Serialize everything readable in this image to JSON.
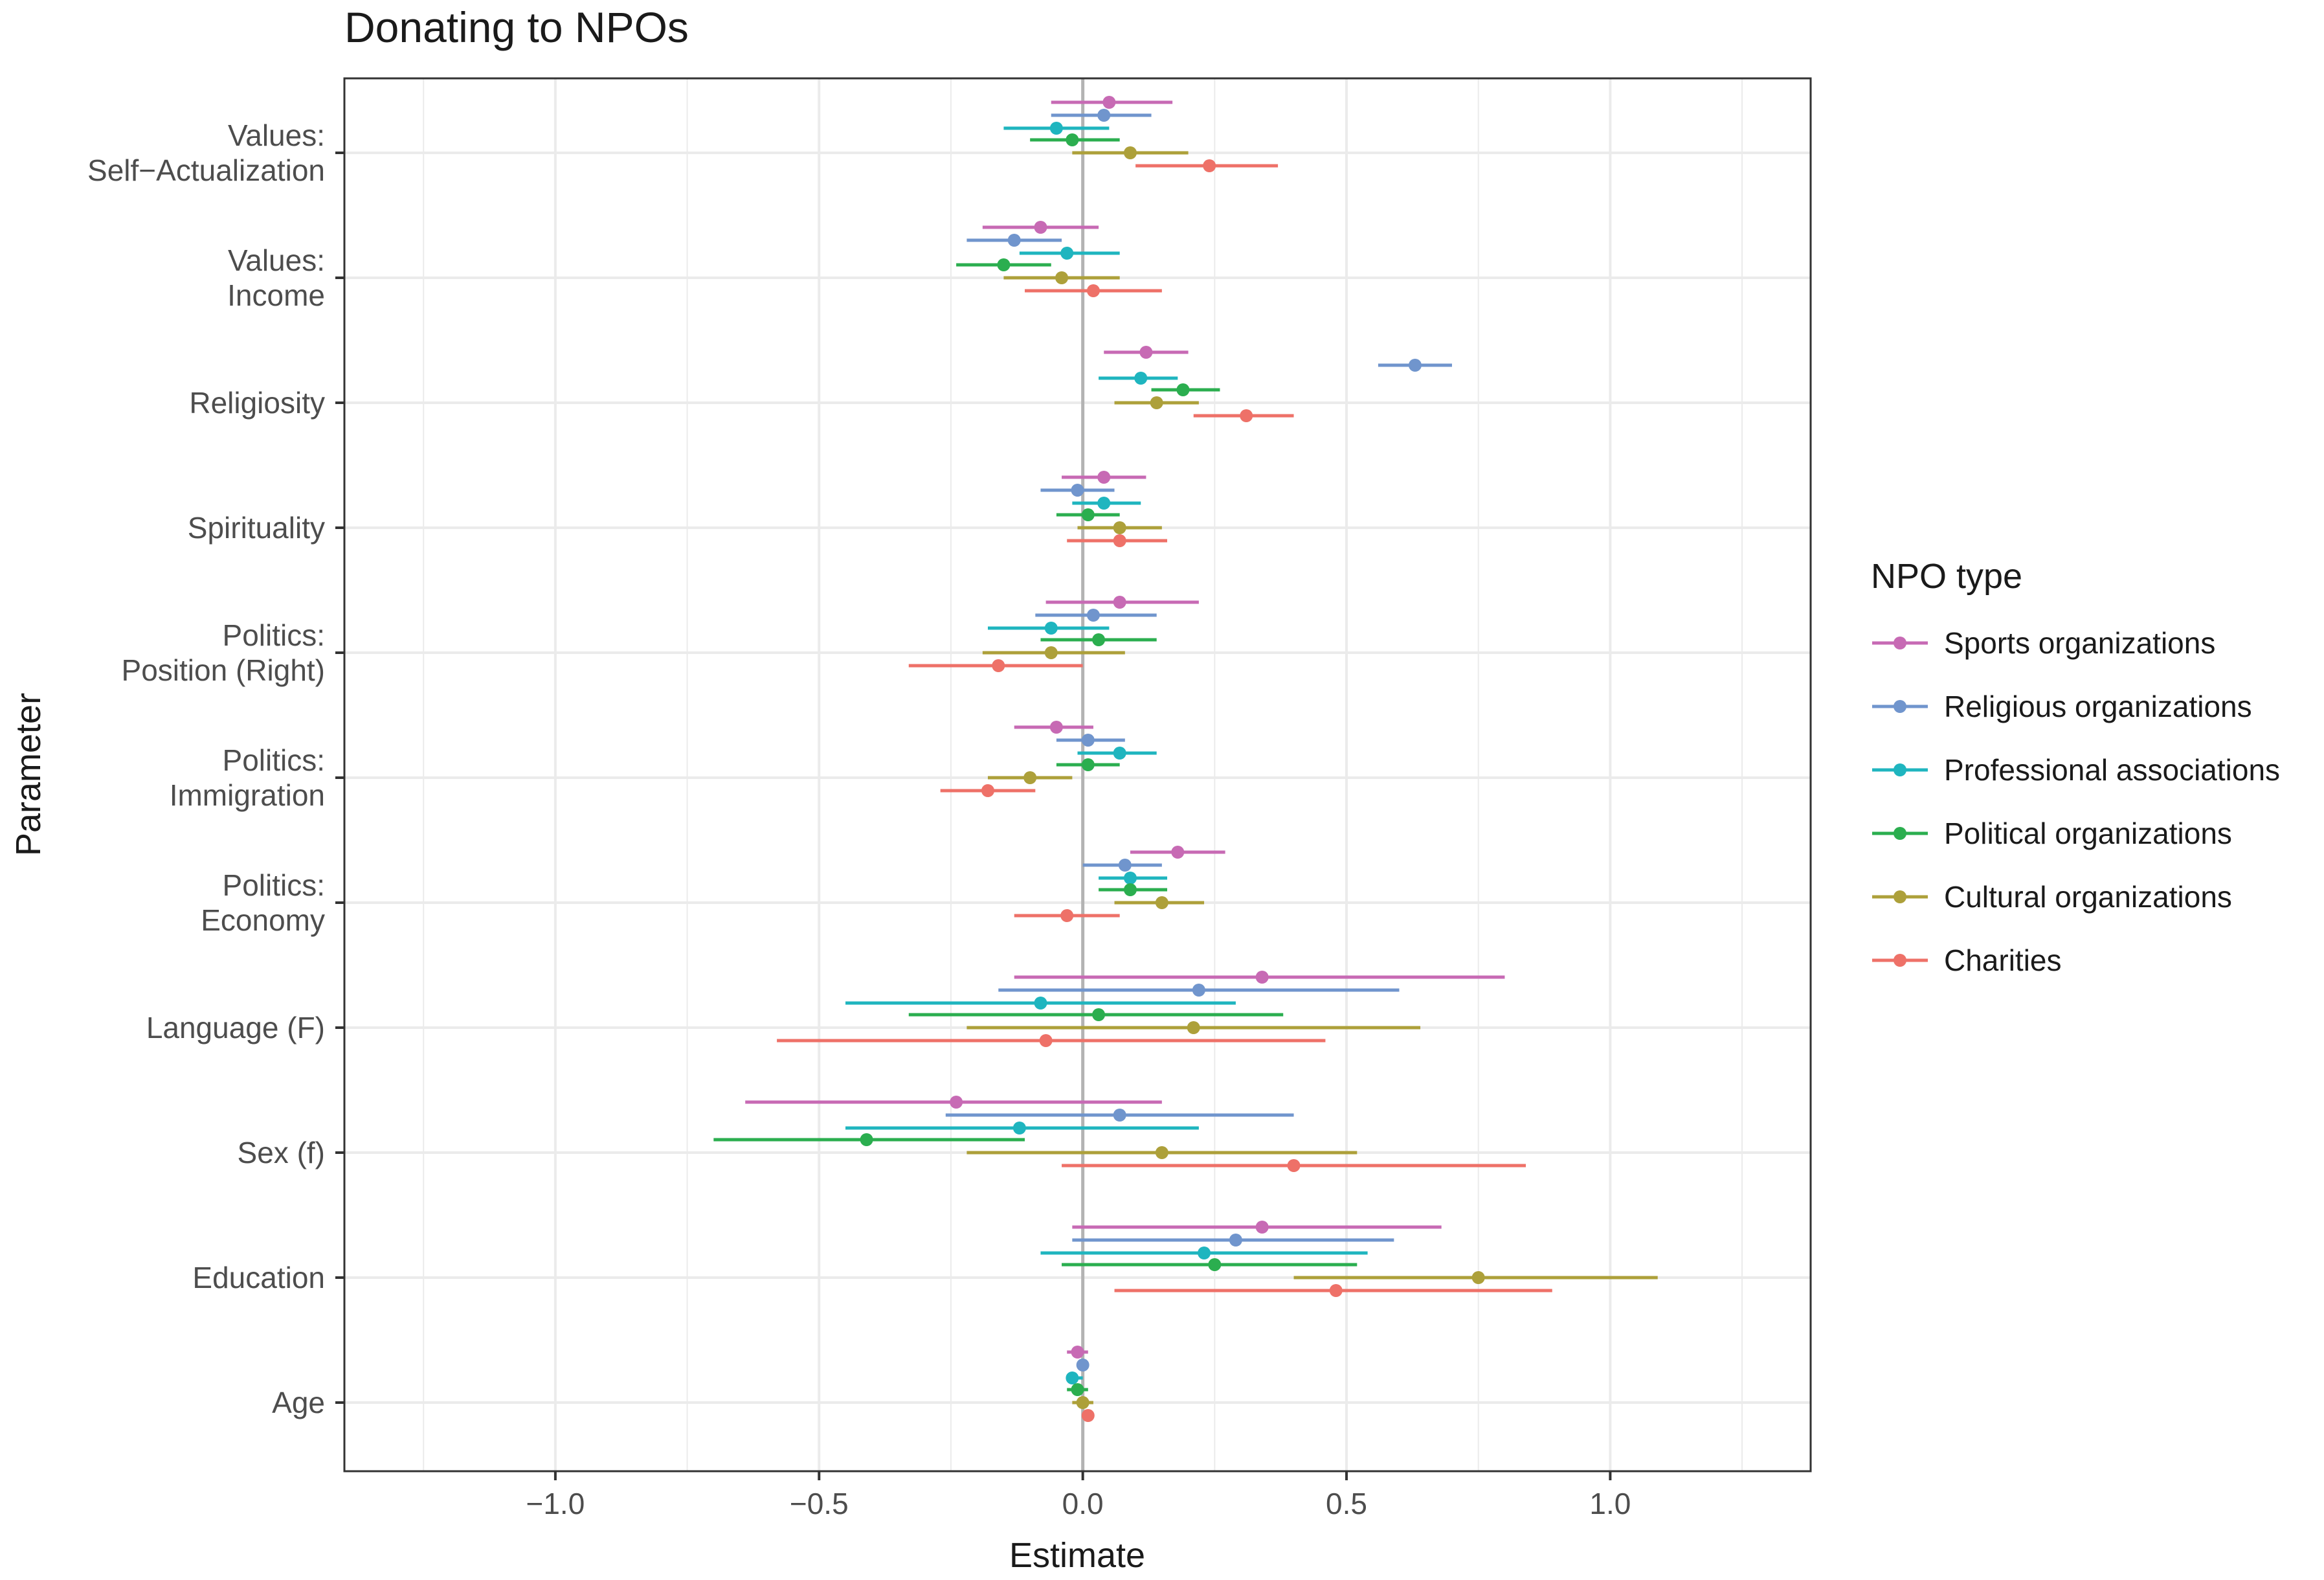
{
  "chart_data": {
    "type": "scatter",
    "title": "Donating to NPOs",
    "xlabel": "Estimate",
    "ylabel": "Parameter",
    "xlim": [
      -1.4,
      1.38
    ],
    "xticks": [
      -1.0,
      -0.5,
      0.0,
      0.5,
      1.0
    ],
    "xtick_labels": [
      "−1.0",
      "−0.5",
      "0.0",
      "0.5",
      "1.0"
    ],
    "grid": true,
    "reference_line_x": 0,
    "legend": {
      "title": "NPO type",
      "position": "right"
    },
    "categories": [
      {
        "label": [
          "Values:",
          "Self−Actualization"
        ]
      },
      {
        "label": [
          "Values:",
          "Income"
        ]
      },
      {
        "label": [
          "Religiosity"
        ]
      },
      {
        "label": [
          "Spirituality"
        ]
      },
      {
        "label": [
          "Politics:",
          "Position (Right)"
        ]
      },
      {
        "label": [
          "Politics:",
          "Immigration"
        ]
      },
      {
        "label": [
          "Politics:",
          "Economy"
        ]
      },
      {
        "label": [
          "Language (F)"
        ]
      },
      {
        "label": [
          "Sex (f)"
        ]
      },
      {
        "label": [
          "Education"
        ]
      },
      {
        "label": [
          "Age"
        ]
      }
    ],
    "series": [
      {
        "name": "Sports organizations",
        "color": "#C76AB4",
        "estimate": [
          0.05,
          -0.08,
          0.12,
          0.04,
          0.07,
          -0.05,
          0.18,
          0.34,
          -0.24,
          0.34,
          -0.01
        ],
        "low": [
          -0.06,
          -0.19,
          0.04,
          -0.04,
          -0.07,
          -0.13,
          0.09,
          -0.13,
          -0.64,
          -0.02,
          -0.03
        ],
        "high": [
          0.17,
          0.03,
          0.2,
          0.12,
          0.22,
          0.02,
          0.27,
          0.8,
          0.15,
          0.68,
          0.01
        ]
      },
      {
        "name": "Religious organizations",
        "color": "#7095CD",
        "estimate": [
          0.04,
          -0.13,
          0.63,
          -0.01,
          0.02,
          0.01,
          0.08,
          0.22,
          0.07,
          0.29,
          0.0
        ],
        "low": [
          -0.06,
          -0.22,
          0.56,
          -0.08,
          -0.09,
          -0.05,
          0.0,
          -0.16,
          -0.26,
          -0.02,
          -0.01
        ],
        "high": [
          0.13,
          -0.04,
          0.7,
          0.06,
          0.14,
          0.08,
          0.15,
          0.6,
          0.4,
          0.59,
          0.01
        ]
      },
      {
        "name": "Professional associations",
        "color": "#1FB5BF",
        "estimate": [
          -0.05,
          -0.03,
          0.11,
          0.04,
          -0.06,
          0.07,
          0.09,
          -0.08,
          -0.12,
          0.23,
          -0.02
        ],
        "low": [
          -0.15,
          -0.12,
          0.03,
          -0.02,
          -0.18,
          -0.01,
          0.03,
          -0.45,
          -0.45,
          -0.08,
          -0.03
        ],
        "high": [
          0.05,
          0.07,
          0.18,
          0.11,
          0.05,
          0.14,
          0.16,
          0.29,
          0.22,
          0.54,
          0.0
        ]
      },
      {
        "name": "Political organizations",
        "color": "#2BAE4F",
        "estimate": [
          -0.02,
          -0.15,
          0.19,
          0.01,
          0.03,
          0.01,
          0.09,
          0.03,
          -0.41,
          0.25,
          -0.01
        ],
        "low": [
          -0.1,
          -0.24,
          0.13,
          -0.05,
          -0.08,
          -0.05,
          0.03,
          -0.33,
          -0.7,
          -0.04,
          -0.03
        ],
        "high": [
          0.07,
          -0.06,
          0.26,
          0.07,
          0.14,
          0.07,
          0.16,
          0.38,
          -0.11,
          0.52,
          0.01
        ]
      },
      {
        "name": "Cultural organizations",
        "color": "#ADA03A",
        "estimate": [
          0.09,
          -0.04,
          0.14,
          0.07,
          -0.06,
          -0.1,
          0.15,
          0.21,
          0.15,
          0.75,
          0.0
        ],
        "low": [
          -0.02,
          -0.15,
          0.06,
          -0.01,
          -0.19,
          -0.18,
          0.06,
          -0.22,
          -0.22,
          0.4,
          -0.02
        ],
        "high": [
          0.2,
          0.07,
          0.22,
          0.15,
          0.08,
          -0.02,
          0.23,
          0.64,
          0.52,
          1.09,
          0.02
        ]
      },
      {
        "name": "Charities",
        "color": "#EE7168",
        "estimate": [
          0.24,
          0.02,
          0.31,
          0.07,
          -0.16,
          -0.18,
          -0.03,
          -0.07,
          0.4,
          0.48,
          0.01
        ],
        "low": [
          0.1,
          -0.11,
          0.21,
          -0.03,
          -0.33,
          -0.27,
          -0.13,
          -0.58,
          -0.04,
          0.06,
          0.0
        ],
        "high": [
          0.37,
          0.15,
          0.4,
          0.16,
          0.0,
          -0.09,
          0.07,
          0.46,
          0.84,
          0.89,
          0.02
        ]
      }
    ]
  }
}
